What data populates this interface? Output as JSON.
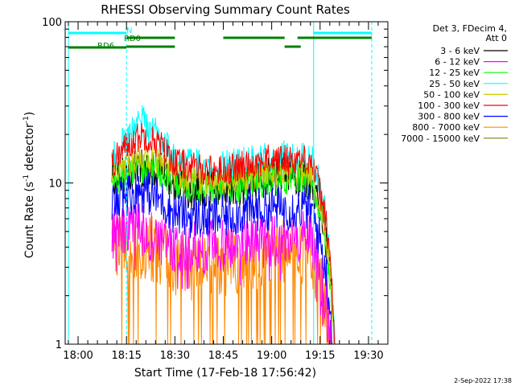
{
  "chart_data": {
    "type": "line",
    "title": "RHESSI Observing Summary Count Rates",
    "xlabel": "Start Time (17-Feb-18 17:56:42)",
    "ylabel_main": "Count Rate (s",
    "ylabel_sup1": "-1",
    "ylabel_mid": " detector",
    "ylabel_sup2": "-1",
    "ylabel_end": ")",
    "yscale": "log",
    "xlim_minutes": [
      -4,
      96
    ],
    "ylim": [
      1,
      100
    ],
    "x_tick_labels": [
      "18:00",
      "18:15",
      "18:30",
      "18:45",
      "19:00",
      "19:15",
      "19:30"
    ],
    "x_ticks_minutes": [
      0,
      15,
      30,
      45,
      60,
      75,
      90
    ],
    "y_tick_labels": [
      "1",
      "10",
      "100"
    ],
    "y_ticks": [
      1,
      10,
      100
    ],
    "legend_position": "top-right",
    "legend_header": [
      "Det 3, FDecim 4,",
      "Att 0"
    ],
    "series": [
      {
        "name": "3 - 6 keV",
        "color": "#000000",
        "level": [
          0,
          11.0,
          11.5,
          12.5,
          12.0,
          10.0,
          9.0,
          9.0,
          9.5,
          9.5,
          10.0,
          11.0,
          10.5,
          0
        ],
        "noise": 0.18
      },
      {
        "name": "6 - 12 keV",
        "color": "#ff00ff",
        "level": [
          0,
          5.0,
          5.5,
          5.0,
          4.5,
          4.0,
          4.0,
          4.0,
          4.2,
          4.2,
          4.3,
          4.5,
          4.5,
          0
        ],
        "noise": 0.25
      },
      {
        "name": "12 - 25 keV",
        "color": "#00ff00",
        "level": [
          0,
          10.0,
          12.0,
          12.5,
          12.0,
          10.0,
          9.0,
          9.0,
          9.3,
          9.5,
          10.0,
          10.5,
          10.5,
          0
        ],
        "noise": 0.15
      },
      {
        "name": "25 - 50 keV",
        "color": "#00ffff",
        "level": [
          0,
          13.0,
          18.0,
          23.0,
          19.0,
          13.0,
          12.5,
          12.0,
          12.0,
          12.5,
          13.5,
          14.0,
          14.0,
          0
        ],
        "noise": 0.18
      },
      {
        "name": "50 - 100 keV",
        "color": "#cccc00",
        "level": [
          0,
          11.0,
          13.0,
          14.5,
          13.5,
          11.0,
          10.5,
          10.0,
          10.0,
          10.5,
          11.0,
          11.5,
          11.5,
          0
        ],
        "noise": 0.12
      },
      {
        "name": "100 - 300 keV",
        "color": "#ff0000",
        "level": [
          0,
          13.0,
          17.0,
          20.0,
          17.5,
          13.5,
          12.5,
          12.0,
          12.0,
          12.5,
          13.5,
          14.0,
          14.0,
          0
        ],
        "noise": 0.14
      },
      {
        "name": "300 - 800 keV",
        "color": "#0000ff",
        "level": [
          0,
          7.0,
          8.5,
          9.0,
          8.0,
          6.5,
          6.2,
          6.0,
          6.2,
          6.5,
          6.8,
          7.0,
          7.0,
          0
        ],
        "noise": 0.2
      },
      {
        "name": "800 - 7000 keV",
        "color": "#ff8800",
        "level": [
          0,
          4.0,
          4.2,
          4.0,
          3.8,
          3.2,
          3.0,
          3.0,
          3.2,
          3.3,
          3.5,
          3.7,
          3.7,
          0
        ],
        "noise": 0.3
      },
      {
        "name": "7000 - 15000 keV",
        "color": "#808000",
        "level": [
          0,
          0,
          0,
          0,
          0,
          0,
          0,
          0,
          0,
          0,
          0,
          0,
          0,
          0
        ],
        "noise": 0
      }
    ],
    "profile_minutes": [
      9.5,
      10.5,
      15,
      20,
      25,
      30,
      35,
      40,
      45,
      50,
      55,
      60,
      72,
      80
    ],
    "data_range_minutes": [
      10.5,
      80
    ],
    "vertical_markers": [
      {
        "minute": -3,
        "color": "#00ffff",
        "style": "solid"
      },
      {
        "minute": 15,
        "color": "#00ffff",
        "style": "dashed"
      },
      {
        "minute": 73,
        "color": "#00ffff",
        "style": "solid"
      },
      {
        "minute": 91,
        "color": "#00ffff",
        "style": "dashed"
      }
    ],
    "flag_bars": [
      {
        "label": "N",
        "color": "#00ffff",
        "level": 1,
        "segments": [
          [
            -3,
            15
          ],
          [
            73,
            91
          ]
        ]
      },
      {
        "label": "RD0",
        "color": "#008000",
        "level": 2,
        "segments": [
          [
            15,
            30
          ],
          [
            45,
            64
          ],
          [
            68,
            91
          ]
        ]
      },
      {
        "label": "RD6",
        "color": "#008000",
        "level": 3,
        "segments": [
          [
            -3,
            15
          ]
        ]
      },
      {
        "label": "",
        "color": "#008000",
        "level": 4,
        "segments": [
          [
            15,
            30
          ],
          [
            64,
            69
          ]
        ]
      }
    ],
    "grid": false
  },
  "footer": {
    "date_stamp": "2-Sep-2022 17:38"
  }
}
